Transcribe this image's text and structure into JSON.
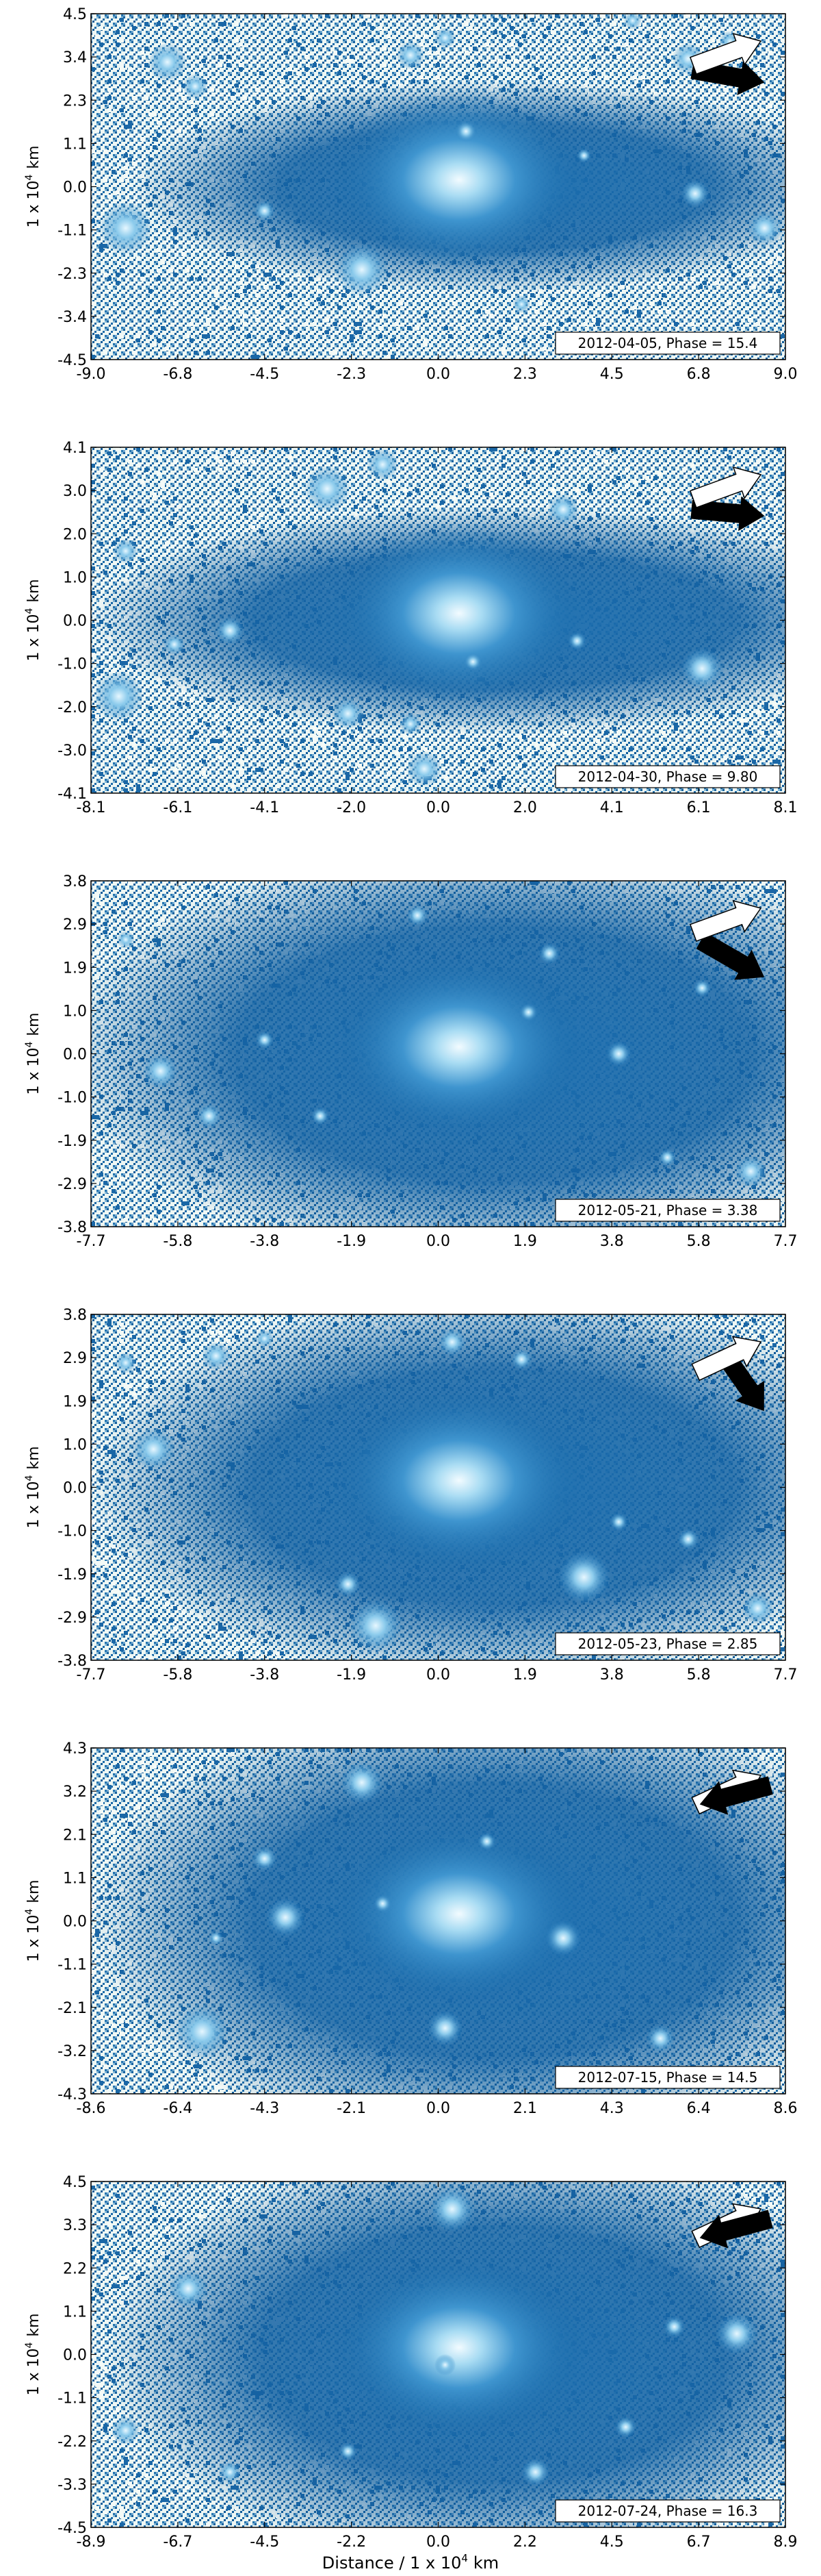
{
  "colors": {
    "background_noise": "#f1f8f6",
    "sky_dark": "#0a4e8f",
    "sky_mid": "#1c6cad",
    "coma_bright": "#e9f8ff",
    "arrow_dark": "#000000",
    "arrow_light": "#ffffff"
  },
  "figure": {
    "xlabel": "Distance / 1 x 10",
    "xlabel_exp": "4",
    "xlabel_unit": "km"
  },
  "chart_data": [
    {
      "type": "heatmap",
      "label": "2012-04-05, Phase = 15.4",
      "ylabel": "1 x 10",
      "ylabel_exp": "4",
      "ylabel_unit": "km",
      "xlim": [
        -9.0,
        9.0
      ],
      "ylim": [
        -4.5,
        4.5
      ],
      "xticks": [
        "-9.0",
        "-6.8",
        "-4.5",
        "-2.3",
        "0.0",
        "2.3",
        "4.5",
        "6.8",
        "9.0"
      ],
      "yticks": [
        "4.5",
        "3.4",
        "2.3",
        "1.1",
        "0.0",
        "-1.1",
        "-2.3",
        "-3.4",
        "-4.5"
      ],
      "arrows": {
        "white_deg": 20,
        "black_deg": -10
      }
    },
    {
      "type": "heatmap",
      "label": "2012-04-30, Phase = 9.80",
      "ylabel": "1 x 10",
      "ylabel_exp": "4",
      "ylabel_unit": "km",
      "xlim": [
        -8.1,
        8.1
      ],
      "ylim": [
        -4.1,
        4.1
      ],
      "xticks": [
        "-8.1",
        "-6.1",
        "-4.1",
        "-2.0",
        "0.0",
        "2.0",
        "4.1",
        "6.1",
        "8.1"
      ],
      "yticks": [
        "4.1",
        "3.0",
        "2.0",
        "1.0",
        "0.0",
        "-1.0",
        "-2.0",
        "-3.0",
        "-4.1"
      ],
      "arrows": {
        "white_deg": 20,
        "black_deg": -5
      }
    },
    {
      "type": "heatmap",
      "label": "2012-05-21, Phase = 3.38",
      "ylabel": "1 x 10",
      "ylabel_exp": "4",
      "ylabel_unit": "km",
      "xlim": [
        -7.7,
        7.7
      ],
      "ylim": [
        -3.8,
        3.8
      ],
      "xticks": [
        "-7.7",
        "-5.8",
        "-3.8",
        "-1.9",
        "0.0",
        "1.9",
        "3.8",
        "5.8",
        "7.7"
      ],
      "yticks": [
        "3.8",
        "2.9",
        "1.9",
        "1.0",
        "0.0",
        "-1.0",
        "-1.9",
        "-2.9",
        "-3.8"
      ],
      "arrows": {
        "white_deg": 20,
        "black_deg": -30
      }
    },
    {
      "type": "heatmap",
      "label": "2012-05-23, Phase = 2.85",
      "ylabel": "1 x 10",
      "ylabel_exp": "4",
      "ylabel_unit": "km",
      "xlim": [
        -7.7,
        7.7
      ],
      "ylim": [
        -3.8,
        3.8
      ],
      "xticks": [
        "-7.7",
        "-5.8",
        "-3.8",
        "-1.9",
        "0.0",
        "1.9",
        "3.8",
        "5.8",
        "7.7"
      ],
      "yticks": [
        "3.8",
        "2.9",
        "1.9",
        "1.0",
        "0.0",
        "-1.0",
        "-1.9",
        "-2.9",
        "-3.8"
      ],
      "arrows": {
        "white_deg": 25,
        "black_deg": -55
      }
    },
    {
      "type": "heatmap",
      "label": "2012-07-15, Phase = 14.5",
      "ylabel": "1 x 10",
      "ylabel_exp": "4",
      "ylabel_unit": "km",
      "xlim": [
        -8.6,
        8.6
      ],
      "ylim": [
        -4.3,
        4.3
      ],
      "xticks": [
        "-8.6",
        "-6.4",
        "-4.3",
        "-2.1",
        "0.0",
        "2.1",
        "4.3",
        "6.4",
        "8.6"
      ],
      "yticks": [
        "4.3",
        "3.2",
        "2.1",
        "1.1",
        "0.0",
        "-1.1",
        "-2.1",
        "-3.2",
        "-4.3"
      ],
      "arrows": {
        "white_deg": 25,
        "black_deg": 195
      }
    },
    {
      "type": "heatmap",
      "label": "2012-07-24, Phase = 16.3",
      "ylabel": "1 x 10",
      "ylabel_exp": "4",
      "ylabel_unit": "km",
      "xlim": [
        -8.9,
        8.9
      ],
      "ylim": [
        -4.5,
        4.5
      ],
      "xticks": [
        "-8.9",
        "-6.7",
        "-4.5",
        "-2.2",
        "0.0",
        "2.2",
        "4.5",
        "6.7",
        "8.9"
      ],
      "yticks": [
        "4.5",
        "3.3",
        "2.2",
        "1.1",
        "0.0",
        "-1.1",
        "-2.2",
        "-3.3",
        "-4.5"
      ],
      "arrows": {
        "white_deg": 25,
        "black_deg": 195
      }
    }
  ]
}
